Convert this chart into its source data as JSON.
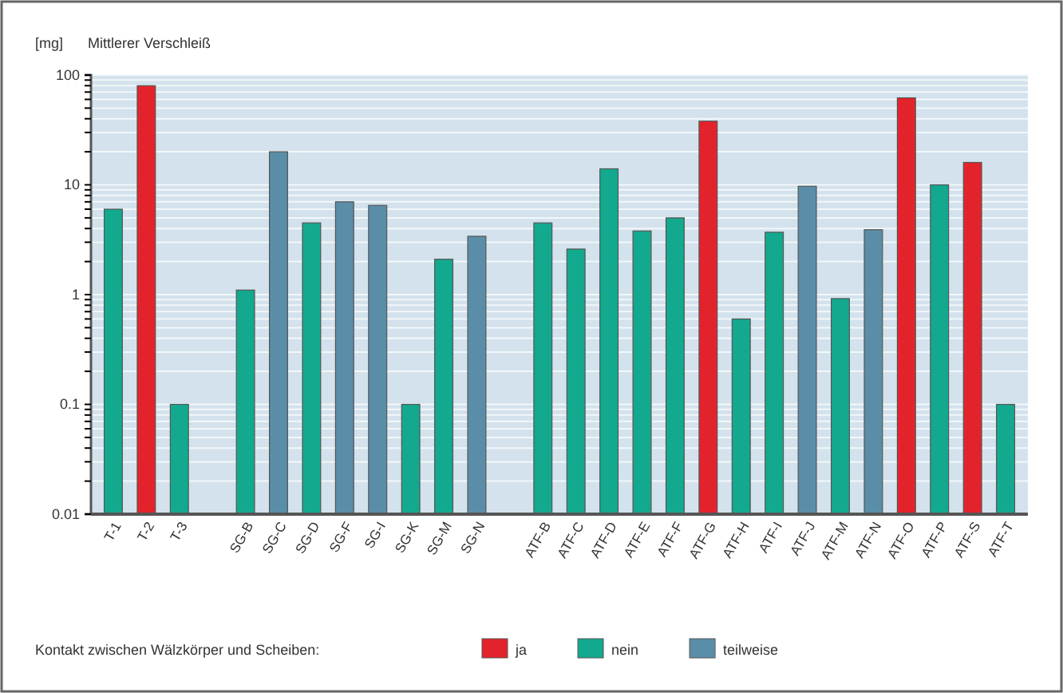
{
  "chart_data": {
    "type": "bar",
    "title": "Mittlerer Verschleiß",
    "ylabel": "[mg]",
    "legend_title": "Kontakt zwischen Wälzkörper und Scheiben:",
    "categories": [
      "T-1",
      "T-2",
      "T-3",
      null,
      "SG-B",
      "SG-C",
      "SG-D",
      "SG-F",
      "SG-I",
      "SG-K",
      "SG-M",
      "SG-N",
      null,
      "ATF-B",
      "ATF-C",
      "ATF-D",
      "ATF-E",
      "ATF-F",
      "ATF-G",
      "ATF-H",
      "ATF-I",
      "ATF-J",
      "ATF-M",
      "ATF-N",
      "ATF-O",
      "ATF-P",
      "ATF-S",
      "ATF-T"
    ],
    "series": [
      {
        "name": "ja",
        "color": "#e3232c",
        "values": [
          null,
          80,
          null,
          null,
          null,
          null,
          null,
          null,
          null,
          null,
          null,
          null,
          null,
          null,
          null,
          null,
          null,
          null,
          38,
          null,
          null,
          null,
          null,
          null,
          62,
          null,
          16,
          null
        ]
      },
      {
        "name": "nein",
        "color": "#13a98f",
        "values": [
          6,
          null,
          0.1,
          null,
          1.1,
          null,
          4.5,
          null,
          null,
          0.1,
          2.1,
          null,
          null,
          4.5,
          2.6,
          14,
          3.8,
          5,
          null,
          0.6,
          3.7,
          null,
          0.92,
          null,
          null,
          10,
          null,
          0.1
        ]
      },
      {
        "name": "teilweise",
        "color": "#5a8ea8",
        "values": [
          null,
          null,
          null,
          null,
          null,
          20,
          null,
          7,
          6.5,
          null,
          null,
          3.4,
          null,
          null,
          null,
          null,
          null,
          null,
          null,
          null,
          null,
          9.7,
          null,
          3.9,
          null,
          null,
          null,
          null
        ]
      }
    ],
    "log": true,
    "ylim": [
      0.01,
      100
    ],
    "yticks": [
      0.01,
      {
        "value": 0.02,
        "label": null
      },
      {
        "value": 0.03,
        "label": null
      },
      {
        "value": 0.04,
        "label": null
      },
      {
        "value": 0.05,
        "label": null
      },
      {
        "value": 0.06,
        "label": null
      },
      {
        "value": 0.07,
        "label": null
      },
      {
        "value": 0.08,
        "label": null
      },
      {
        "value": 0.09,
        "label": null
      },
      0.1,
      {
        "value": 0.2,
        "label": null
      },
      {
        "value": 0.3,
        "label": null
      },
      {
        "value": 0.4,
        "label": null
      },
      {
        "value": 0.5,
        "label": null
      },
      {
        "value": 0.6,
        "label": null
      },
      {
        "value": 0.7,
        "label": null
      },
      {
        "value": 0.8,
        "label": null
      },
      {
        "value": 0.9,
        "label": null
      },
      1,
      {
        "value": 2,
        "label": null
      },
      {
        "value": 3,
        "label": null
      },
      {
        "value": 4,
        "label": null
      },
      {
        "value": 5,
        "label": null
      },
      {
        "value": 6,
        "label": null
      },
      {
        "value": 7,
        "label": null
      },
      {
        "value": 8,
        "label": null
      },
      {
        "value": 9,
        "label": null
      },
      10,
      {
        "value": 20,
        "label": null
      },
      {
        "value": 30,
        "label": null
      },
      {
        "value": 40,
        "label": null
      },
      {
        "value": 50,
        "label": null
      },
      {
        "value": 60,
        "label": null
      },
      {
        "value": 70,
        "label": null
      },
      {
        "value": 80,
        "label": null
      },
      {
        "value": 90,
        "label": null
      },
      100
    ],
    "grid": "y",
    "legend": "bottom"
  }
}
